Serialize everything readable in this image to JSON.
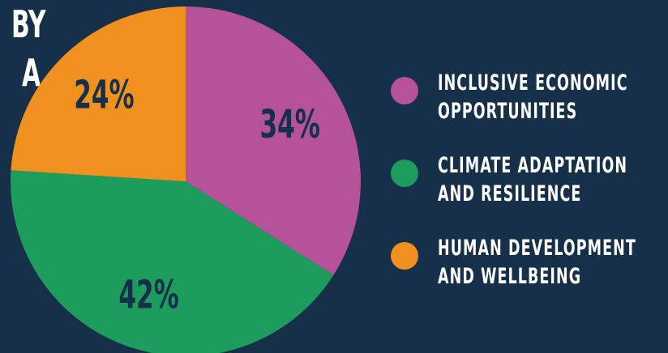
{
  "title_fragment": [
    "BY",
    "A"
  ],
  "chart_data": {
    "type": "pie",
    "categories": [
      "INCLUSIVE ECONOMIC OPPORTUNITIES",
      "CLIMATE ADAPTATION AND RESILIENCE",
      "HUMAN DEVELOPMENT AND WELLBEING"
    ],
    "values": [
      34,
      42,
      24
    ],
    "value_labels": [
      "34%",
      "42%",
      "24%"
    ],
    "colors": [
      "#b5529a",
      "#1c9d5e",
      "#f0901f"
    ],
    "label_color": "#16304a",
    "legend_position": "right"
  },
  "legend": {
    "items": [
      {
        "line1": "INCLUSIVE ECONOMIC",
        "line2": "OPPORTUNITIES"
      },
      {
        "line1": "CLIMATE ADAPTATION",
        "line2": "AND RESILIENCE"
      },
      {
        "line1": "HUMAN DEVELOPMENT",
        "line2": "AND WELLBEING"
      }
    ]
  }
}
